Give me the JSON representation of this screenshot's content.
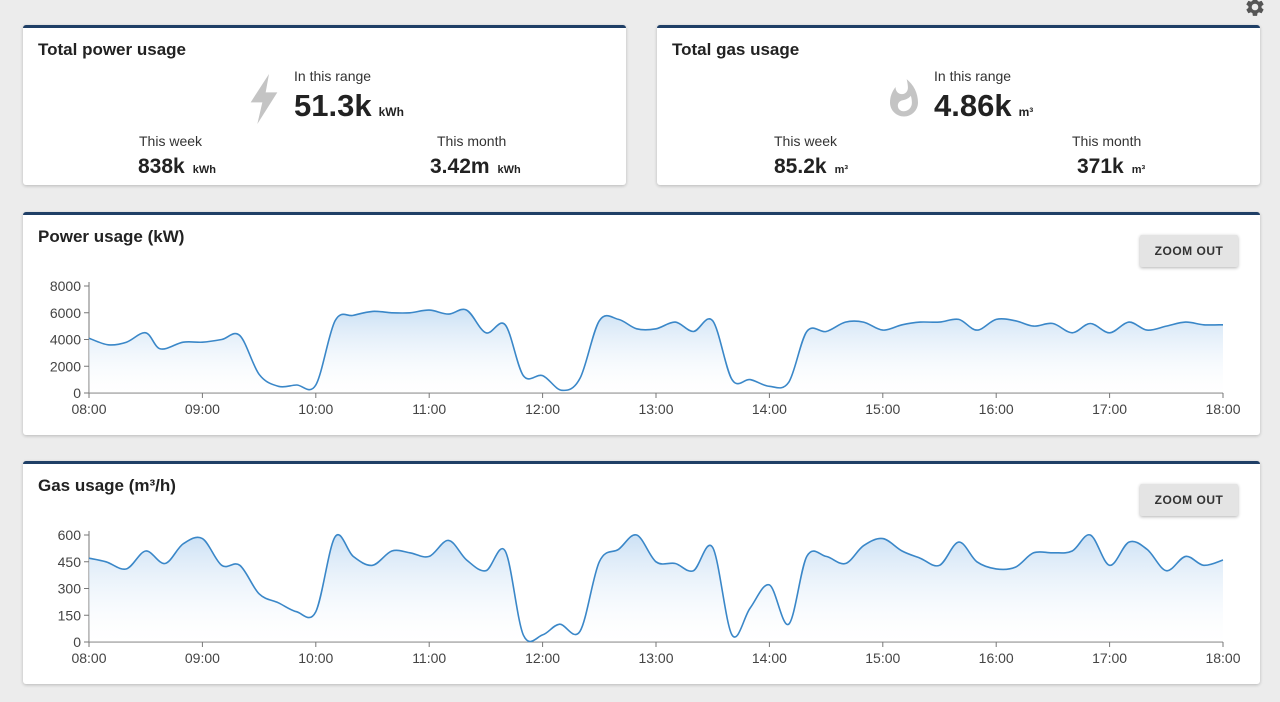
{
  "settings": {
    "icon": "gear-icon"
  },
  "power_summary": {
    "title": "Total power usage",
    "icon": "lightning-icon",
    "range_label": "In this range",
    "range_value": "51.3k",
    "range_unit": "kWh",
    "week_label": "This week",
    "week_value": "838k",
    "week_unit": "kWh",
    "month_label": "This month",
    "month_value": "3.42m",
    "month_unit": "kWh"
  },
  "gas_summary": {
    "title": "Total gas usage",
    "icon": "flame-icon",
    "range_label": "In this range",
    "range_value": "4.86k",
    "range_unit": "m³",
    "week_label": "This week",
    "week_value": "85.2k",
    "week_unit": "m³",
    "month_label": "This month",
    "month_value": "371k",
    "month_unit": "m³"
  },
  "power_chart": {
    "title": "Power usage (kW)",
    "zoom_label": "ZOOM OUT"
  },
  "gas_chart": {
    "title": "Gas usage (m³/h)",
    "zoom_label": "ZOOM OUT"
  },
  "colors": {
    "line": "#3a87c8",
    "fill_top": "#c9dff4",
    "header_border": "#1f3f66"
  },
  "chart_data": [
    {
      "type": "area",
      "title": "Power usage (kW)",
      "xlim": [
        8,
        18
      ],
      "ylim": [
        0,
        8000
      ],
      "x_ticks": [
        "08:00",
        "09:00",
        "10:00",
        "11:00",
        "12:00",
        "13:00",
        "14:00",
        "15:00",
        "16:00",
        "17:00",
        "18:00"
      ],
      "y_ticks": [
        0,
        2000,
        4000,
        6000,
        8000
      ],
      "series": [
        {
          "x": [
            8.0,
            8.17,
            8.33,
            8.5,
            8.63,
            8.83,
            9.0,
            9.17,
            9.33,
            9.5,
            9.67,
            9.83,
            10.0,
            10.17,
            10.33,
            10.5,
            10.67,
            10.83,
            11.0,
            11.17,
            11.33,
            11.5,
            11.67,
            11.83,
            12.0,
            12.17,
            12.33,
            12.5,
            12.67,
            12.83,
            13.0,
            13.17,
            13.33,
            13.5,
            13.67,
            13.83,
            14.0,
            14.17,
            14.33,
            14.5,
            14.67,
            14.83,
            15.0,
            15.17,
            15.33,
            15.5,
            15.67,
            15.83,
            16.0,
            16.17,
            16.33,
            16.5,
            16.67,
            16.83,
            17.0,
            17.17,
            17.33,
            17.5,
            17.67,
            17.83,
            18.0
          ],
          "values": [
            4100,
            3600,
            3800,
            4500,
            3300,
            3800,
            3800,
            4000,
            4300,
            1400,
            500,
            600,
            600,
            5400,
            5800,
            6100,
            6000,
            6000,
            6200,
            5900,
            6200,
            4500,
            5100,
            1300,
            1300,
            200,
            1100,
            5400,
            5500,
            4800,
            4800,
            5300,
            4600,
            5400,
            1000,
            1000,
            500,
            800,
            4600,
            4600,
            5300,
            5300,
            4700,
            5100,
            5300,
            5300,
            5500,
            4700,
            5500,
            5400,
            5000,
            5200,
            4500,
            5200,
            4500,
            5300,
            4700,
            5000,
            5300,
            5100,
            5100
          ]
        }
      ]
    },
    {
      "type": "area",
      "title": "Gas usage (m³/h)",
      "xlim": [
        8,
        18
      ],
      "ylim": [
        0,
        600
      ],
      "x_ticks": [
        "08:00",
        "09:00",
        "10:00",
        "11:00",
        "12:00",
        "13:00",
        "14:00",
        "15:00",
        "16:00",
        "17:00",
        "18:00"
      ],
      "y_ticks": [
        0,
        150,
        300,
        450,
        600
      ],
      "series": [
        {
          "x": [
            8.0,
            8.15,
            8.33,
            8.5,
            8.67,
            8.83,
            9.0,
            9.17,
            9.33,
            9.5,
            9.67,
            9.83,
            10.0,
            10.17,
            10.33,
            10.5,
            10.67,
            10.83,
            11.0,
            11.17,
            11.33,
            11.5,
            11.67,
            11.83,
            12.0,
            12.15,
            12.33,
            12.5,
            12.67,
            12.83,
            13.0,
            13.17,
            13.33,
            13.5,
            13.67,
            13.83,
            14.0,
            14.17,
            14.33,
            14.5,
            14.67,
            14.83,
            15.0,
            15.17,
            15.33,
            15.5,
            15.67,
            15.83,
            16.0,
            16.17,
            16.33,
            16.5,
            16.67,
            16.83,
            17.0,
            17.17,
            17.33,
            17.5,
            17.67,
            17.83,
            18.0
          ],
          "values": [
            470,
            450,
            410,
            510,
            440,
            550,
            580,
            430,
            430,
            270,
            220,
            170,
            170,
            590,
            480,
            430,
            510,
            500,
            480,
            570,
            460,
            400,
            510,
            40,
            40,
            100,
            60,
            450,
            520,
            600,
            450,
            440,
            400,
            530,
            40,
            190,
            320,
            100,
            480,
            480,
            440,
            540,
            580,
            510,
            470,
            430,
            560,
            450,
            410,
            420,
            500,
            500,
            510,
            600,
            430,
            560,
            520,
            400,
            480,
            430,
            460
          ]
        }
      ]
    }
  ]
}
